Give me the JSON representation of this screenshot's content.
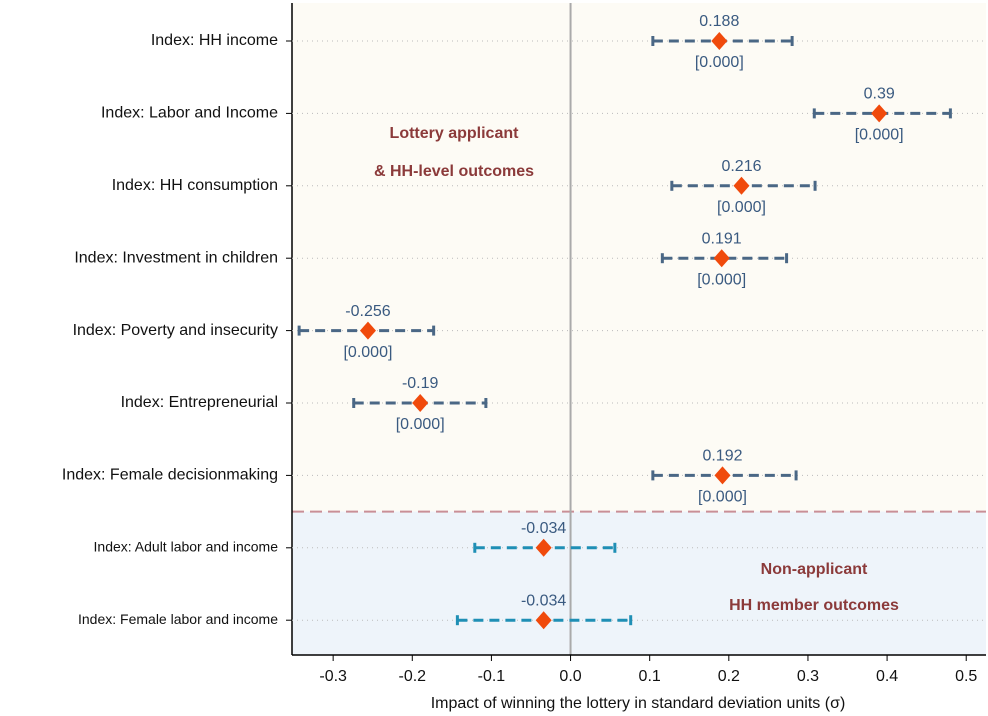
{
  "chart_data": {
    "type": "coefplot",
    "xlabel": "Impact of winning the lottery in standard deviation units (σ)",
    "xlim": [
      -0.352,
      0.525
    ],
    "xticks": [
      -0.3,
      -0.2,
      -0.1,
      {
        "value": 0,
        "label": "0.0"
      },
      0.1,
      0.2,
      0.3,
      0.4,
      0.5
    ],
    "groups": [
      {
        "annotation": [
          "Lottery applicant",
          "& HH-level outcomes"
        ],
        "color": "#4a6785",
        "background": "#fdfbf5",
        "categories": [
          "Index: HH income",
          "Index: Labor and Income",
          "Index: HH consumption",
          "Index: Investment in children",
          "Index: Poverty and insecurity",
          "Index: Entrepreneurial",
          "Index: Female decisionmaking"
        ],
        "values": [
          0.188,
          0.39,
          0.216,
          0.191,
          -0.256,
          -0.19,
          0.192
        ],
        "lower": [
          0.104,
          0.308,
          0.128,
          0.116,
          -0.343,
          -0.274,
          0.104
        ],
        "upper": [
          0.28,
          0.48,
          0.309,
          0.273,
          -0.173,
          -0.107,
          0.285
        ],
        "p_labels": [
          "[0.000]",
          "[0.000]",
          "[0.000]",
          "[0.000]",
          "[0.000]",
          "[0.000]",
          "[0.000]"
        ]
      },
      {
        "annotation": [
          "Non-applicant",
          "HH member outcomes"
        ],
        "color": "#1f8fb5",
        "background": "#eef4fa",
        "categories": [
          "Index: Adult labor and income",
          "Index: Female labor and income"
        ],
        "values": [
          -0.034,
          -0.034
        ],
        "lower": [
          -0.121,
          -0.143
        ],
        "upper": [
          0.056,
          0.076
        ]
      }
    ],
    "marker_color": "#f04a0c",
    "grid": true
  }
}
